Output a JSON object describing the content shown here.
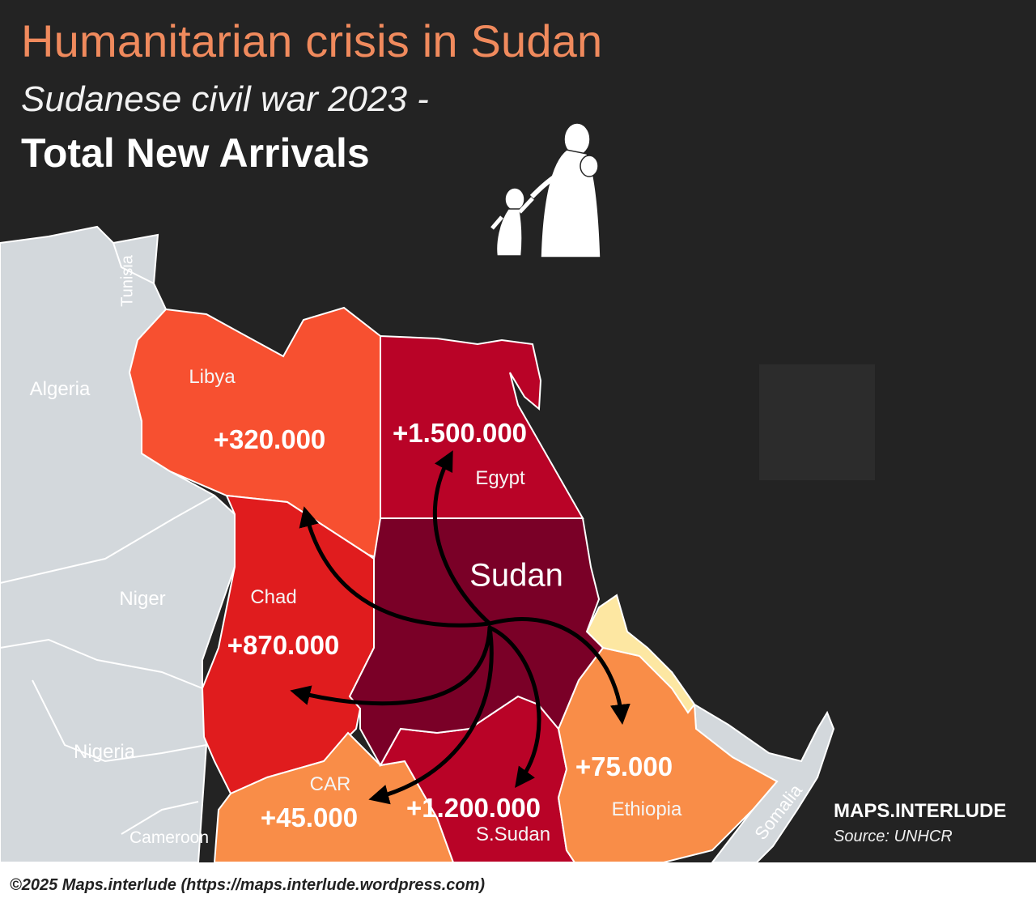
{
  "title": "Humanitarian crisis in Sudan",
  "subtitle": "Sudanese civil war  2023 -",
  "heading": "Total New Arrivals",
  "origin": "Sudan",
  "destinations": [
    {
      "country": "Libya",
      "arrivals": "+320.000",
      "color": "#f75030"
    },
    {
      "country": "Egypt",
      "arrivals": "+1.500.000",
      "color": "#b90327"
    },
    {
      "country": "Chad",
      "arrivals": "+870.000",
      "color": "#e01c1e"
    },
    {
      "country": "CAR",
      "arrivals": "+45.000",
      "color": "#f98d48"
    },
    {
      "country": "S.Sudan",
      "arrivals": "+1.200.000",
      "color": "#b90327"
    },
    {
      "country": "Ethiopia",
      "arrivals": "+75.000",
      "color": "#f98d48"
    }
  ],
  "other_countries": [
    "Tunisia",
    "Algeria",
    "Niger",
    "Nigeria",
    "Cameroon",
    "Somalia"
  ],
  "colors": {
    "background": "#232323",
    "sudan": "#7a0027",
    "neighbor_grey": "#d3d8dc",
    "eritrea": "#fde7a2",
    "title_accent": "#f08a5d"
  },
  "brand": "MAPS.INTERLUDE",
  "source": "Source: UNHCR",
  "footer": "©2025 Maps.interlude (https://maps.interlude.wordpress.com)"
}
